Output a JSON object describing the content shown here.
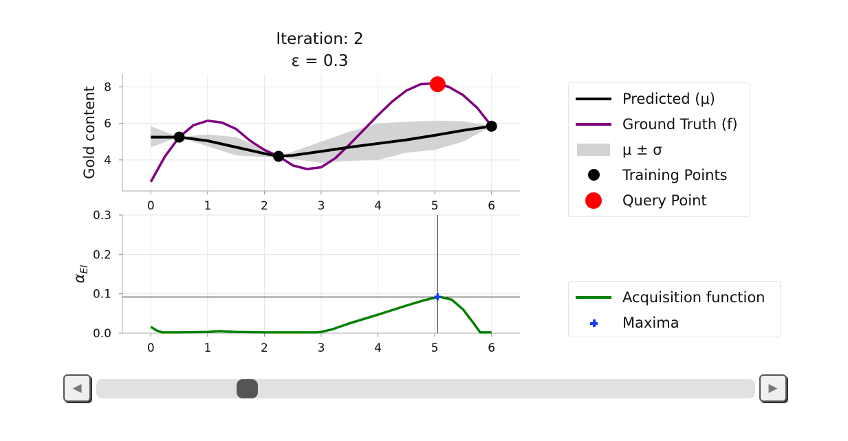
{
  "title": {
    "line1": "Iteration: 2",
    "line2": "ε = 0.3"
  },
  "chart_data": [
    {
      "type": "line",
      "ylabel": "Gold content",
      "xticks": [
        "0",
        "1",
        "2",
        "3",
        "4",
        "5",
        "6"
      ],
      "yticks": [
        "4",
        "6",
        "8"
      ],
      "xlim": [
        -0.5,
        6.5
      ],
      "ylim": [
        2.3,
        8.7
      ],
      "grid": true,
      "series": [
        {
          "name": "Predicted (μ)",
          "color": "#000000",
          "x": [
            0,
            0.5,
            1.0,
            1.5,
            2.0,
            2.25,
            2.5,
            3.0,
            3.5,
            4.0,
            4.5,
            5.0,
            5.5,
            6.0
          ],
          "y": [
            5.25,
            5.25,
            5.05,
            4.7,
            4.35,
            4.2,
            4.25,
            4.47,
            4.7,
            4.9,
            5.1,
            5.35,
            5.62,
            5.85
          ]
        },
        {
          "name": "Ground Truth (f)",
          "color": "#800080",
          "x": [
            0,
            0.25,
            0.5,
            0.75,
            1.0,
            1.25,
            1.5,
            1.75,
            2.0,
            2.25,
            2.5,
            2.75,
            3.0,
            3.25,
            3.5,
            3.75,
            4.0,
            4.25,
            4.5,
            4.75,
            5.0,
            5.25,
            5.5,
            5.75,
            6.0
          ],
          "y": [
            2.8,
            4.2,
            5.25,
            5.9,
            6.15,
            6.05,
            5.7,
            5.05,
            4.55,
            4.2,
            3.7,
            3.5,
            3.6,
            4.1,
            4.85,
            5.65,
            6.45,
            7.2,
            7.8,
            8.15,
            8.2,
            8.0,
            7.55,
            6.85,
            5.85
          ]
        },
        {
          "name": "μ ± σ",
          "color": "#d3d3d3",
          "x": [
            0,
            0.5,
            1.0,
            1.5,
            2.0,
            2.25,
            2.5,
            3.0,
            3.5,
            4.0,
            4.5,
            5.0,
            5.5,
            6.0
          ],
          "upper": [
            5.85,
            5.25,
            5.4,
            5.25,
            4.6,
            4.2,
            4.45,
            5.0,
            5.55,
            6.0,
            6.1,
            6.15,
            6.12,
            5.85
          ],
          "lower": [
            4.7,
            5.25,
            4.75,
            4.25,
            4.15,
            4.2,
            4.05,
            3.85,
            3.95,
            4.0,
            4.4,
            4.55,
            5.0,
            5.85
          ]
        }
      ],
      "training_points": {
        "name": "Training Points",
        "color": "#000000",
        "x": [
          0.5,
          2.25,
          6.0
        ],
        "y": [
          5.25,
          4.2,
          5.85
        ]
      },
      "query_point": {
        "name": "Query Point",
        "color": "#ff0000",
        "x": 5.05,
        "y": 8.15
      }
    },
    {
      "type": "line",
      "ylabel": "α_EI",
      "xticks": [
        "0",
        "1",
        "2",
        "3",
        "4",
        "5",
        "6"
      ],
      "yticks": [
        "0.0",
        "0.1",
        "0.2",
        "0.3"
      ],
      "xlim": [
        -0.5,
        6.5
      ],
      "ylim": [
        0,
        0.3
      ],
      "grid": true,
      "series": [
        {
          "name": "Acquisition function",
          "color": "#008000",
          "x": [
            0,
            0.1,
            0.2,
            0.5,
            1.0,
            1.2,
            1.5,
            2.0,
            2.5,
            2.9,
            3.0,
            3.2,
            3.5,
            4.0,
            4.5,
            4.8,
            5.0,
            5.1,
            5.3,
            5.5,
            5.7,
            5.8,
            6.0
          ],
          "y": [
            0.016,
            0.007,
            0.002,
            0.002,
            0.003,
            0.005,
            0.003,
            0.002,
            0.002,
            0.002,
            0.003,
            0.01,
            0.025,
            0.047,
            0.07,
            0.083,
            0.09,
            0.092,
            0.085,
            0.06,
            0.022,
            0.002,
            0.002
          ]
        }
      ],
      "maxima": {
        "name": "Maxima",
        "color": "#1a3cff",
        "x": 5.05,
        "y": 0.092
      },
      "hline": 0.092,
      "vline": 5.05
    }
  ],
  "legend_top": [
    {
      "label": "Predicted (μ)",
      "kind": "line",
      "color": "#000000"
    },
    {
      "label": "Ground Truth (f)",
      "kind": "line",
      "color": "#800080"
    },
    {
      "label": "μ ± σ",
      "kind": "patch",
      "color": "#d3d3d3"
    },
    {
      "label": "Training Points",
      "kind": "dot",
      "color": "#000000"
    },
    {
      "label": "Query Point",
      "kind": "dot-big",
      "color": "#ff0000"
    }
  ],
  "legend_bottom": [
    {
      "label": "Acquisition function",
      "kind": "line",
      "color": "#008000"
    },
    {
      "label": "Maxima",
      "kind": "plus",
      "color": "#1a3cff"
    }
  ],
  "slider": {
    "prev_icon": "◀",
    "next_icon": "▶",
    "position": 0.22
  }
}
